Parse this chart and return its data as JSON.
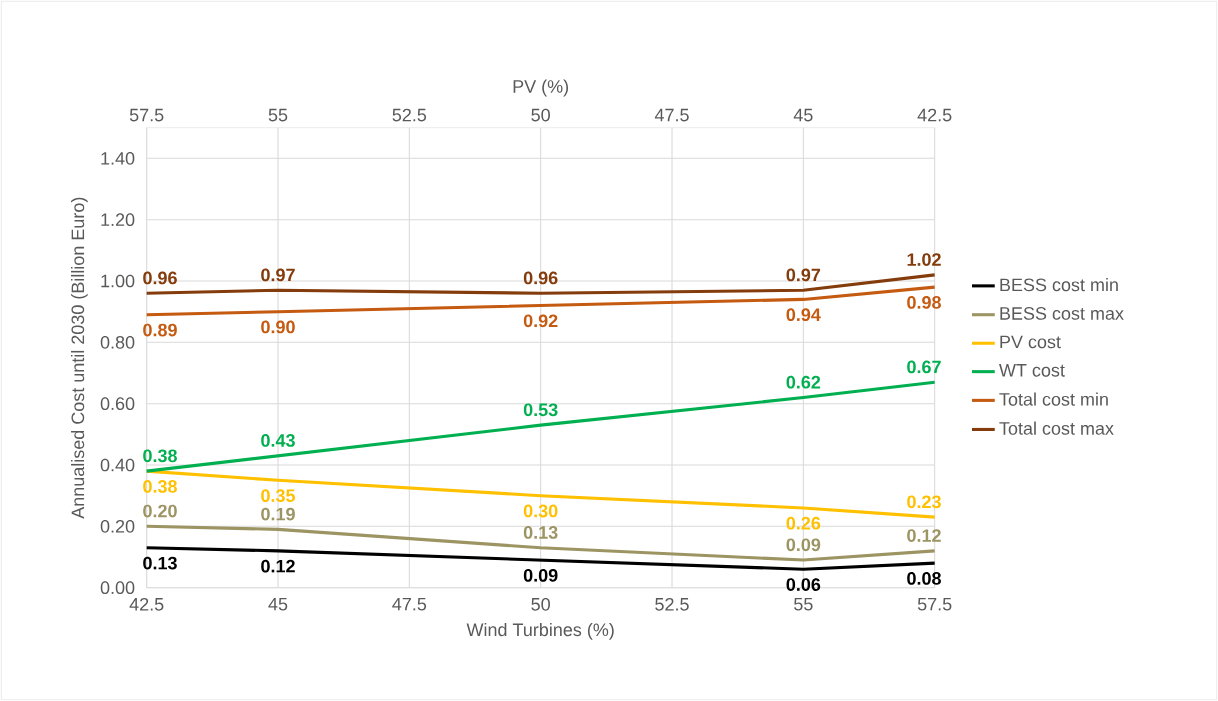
{
  "chart_data": {
    "type": "line",
    "xlabel": "Wind Turbines (%)",
    "x2label": "PV (%)",
    "ylabel": "Annualised Cost until 2030 (Billion Euro)",
    "x": [
      42.5,
      45,
      50,
      55,
      57.5
    ],
    "xlim": [
      42.5,
      57.5
    ],
    "xticks": [
      42.5,
      45,
      47.5,
      50,
      52.5,
      55,
      57.5
    ],
    "x2lim": [
      57.5,
      42.5
    ],
    "x2ticks": [
      57.5,
      55,
      52.5,
      50,
      47.5,
      45,
      42.5
    ],
    "ylim": [
      0,
      1.5
    ],
    "yticks": [
      {
        "value": 0,
        "label": "0.00"
      },
      {
        "value": 0.2,
        "label": "0.20"
      },
      {
        "value": 0.4,
        "label": "0.40"
      },
      {
        "value": 0.6,
        "label": "0.60"
      },
      {
        "value": 0.8,
        "label": "0.80"
      },
      {
        "value": 1.0,
        "label": "1.00"
      },
      {
        "value": 1.2,
        "label": "1.20"
      },
      {
        "value": 1.4,
        "label": "1.40"
      }
    ],
    "grid": true,
    "legend": "right",
    "series": [
      {
        "name": "BESS cost min",
        "color": "#000000",
        "values": [
          0.13,
          0.12,
          0.09,
          0.06,
          0.08
        ],
        "value_labels": [
          "0.13",
          "0.12",
          "0.09",
          "0.06",
          "0.08"
        ]
      },
      {
        "name": "BESS cost max",
        "color": "#9c9462",
        "values": [
          0.2,
          0.19,
          0.13,
          0.09,
          0.12
        ],
        "value_labels": [
          "0.20",
          "0.19",
          "0.13",
          "0.09",
          "0.12"
        ]
      },
      {
        "name": "PV cost",
        "color": "#ffc000",
        "values": [
          0.38,
          0.35,
          0.3,
          0.26,
          0.23
        ],
        "value_labels": [
          "0.38",
          "0.35",
          "0.30",
          "0.26",
          "0.23"
        ]
      },
      {
        "name": "WT cost",
        "color": "#00b050",
        "values": [
          0.38,
          0.43,
          0.53,
          0.62,
          0.67
        ],
        "value_labels": [
          "0.38",
          "0.43",
          "0.53",
          "0.62",
          "0.67"
        ]
      },
      {
        "name": "Total cost min",
        "color": "#c55a11",
        "values": [
          0.89,
          0.9,
          0.92,
          0.94,
          0.98
        ],
        "value_labels": [
          "0.89",
          "0.90",
          "0.92",
          "0.94",
          "0.98"
        ]
      },
      {
        "name": "Total cost max",
        "color": "#843c0c",
        "values": [
          0.96,
          0.97,
          0.96,
          0.97,
          1.02
        ],
        "value_labels": [
          "0.96",
          "0.97",
          "0.96",
          "0.97",
          "1.02"
        ]
      }
    ]
  }
}
